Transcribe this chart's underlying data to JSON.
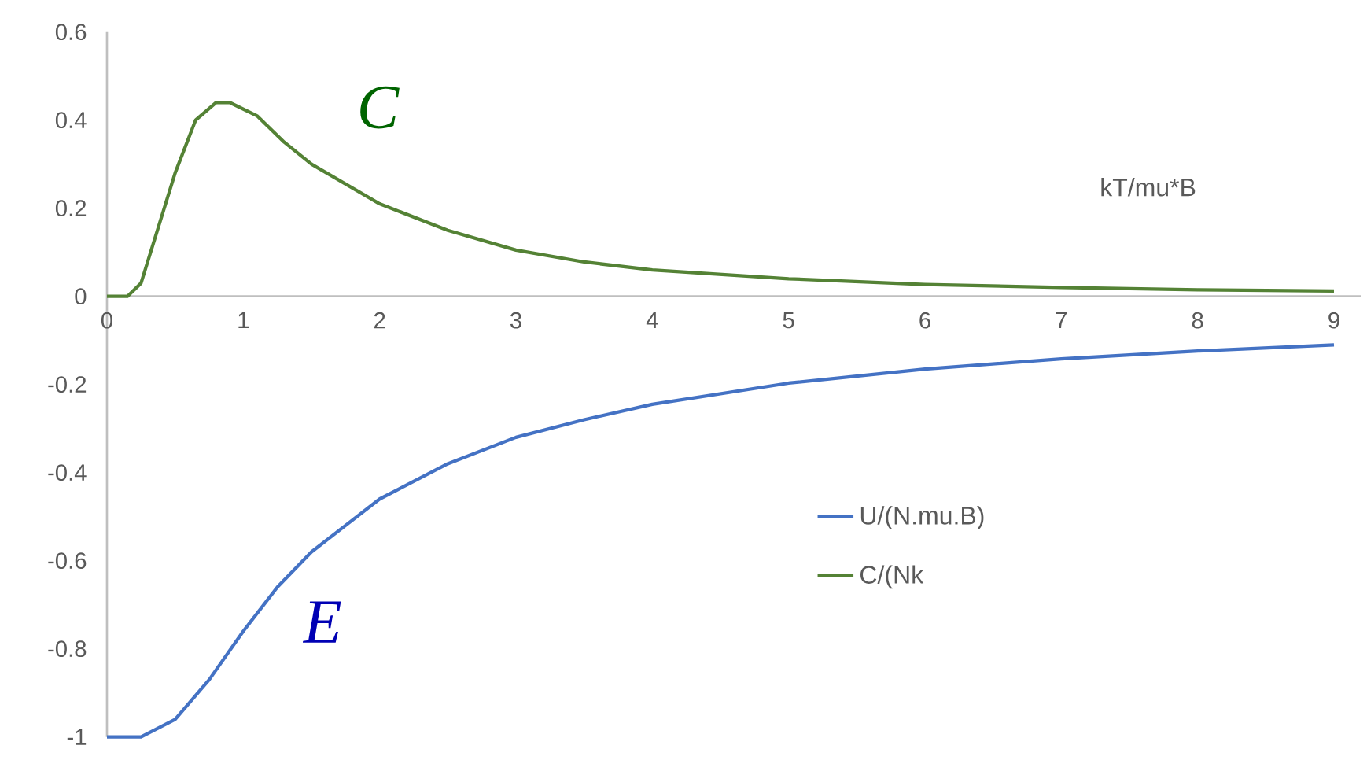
{
  "chart_data": {
    "type": "line",
    "xlabel": "kT/mu*B",
    "xlim": [
      0,
      9.2
    ],
    "ylim": [
      -1,
      0.6
    ],
    "xticks": [
      0,
      1,
      2,
      3,
      4,
      5,
      6,
      7,
      8,
      9
    ],
    "yticks": [
      -1,
      -0.8,
      -0.6,
      -0.4,
      -0.2,
      0,
      0.2,
      0.4,
      0.6
    ],
    "legend": "right",
    "grid": false,
    "marker": "none",
    "line_style": "solid",
    "series": [
      {
        "name": "U/(N.mu.B)",
        "color": "#4472c4",
        "x": [
          0,
          0.25,
          0.5,
          0.75,
          1,
          1.25,
          1.5,
          1.75,
          2,
          2.5,
          3,
          3.5,
          4,
          5,
          6,
          7,
          8,
          9
        ],
        "values": [
          -1,
          -1,
          -0.96,
          -0.87,
          -0.76,
          -0.66,
          -0.58,
          -0.52,
          -0.46,
          -0.38,
          -0.32,
          -0.28,
          -0.245,
          -0.197,
          -0.165,
          -0.142,
          -0.124,
          -0.11
        ]
      },
      {
        "name": "C/(Nk",
        "color": "#548235",
        "x": [
          0,
          0.15,
          0.25,
          0.5,
          0.65,
          0.8,
          0.9,
          1.1,
          1.3,
          1.5,
          2,
          2.5,
          3,
          3.5,
          4,
          5,
          6,
          7,
          8,
          9
        ],
        "values": [
          0,
          0,
          0.03,
          0.28,
          0.4,
          0.44,
          0.44,
          0.41,
          0.35,
          0.3,
          0.21,
          0.15,
          0.105,
          0.078,
          0.06,
          0.04,
          0.027,
          0.02,
          0.015,
          0.012
        ]
      }
    ],
    "annotations": [
      "E",
      "C"
    ]
  }
}
